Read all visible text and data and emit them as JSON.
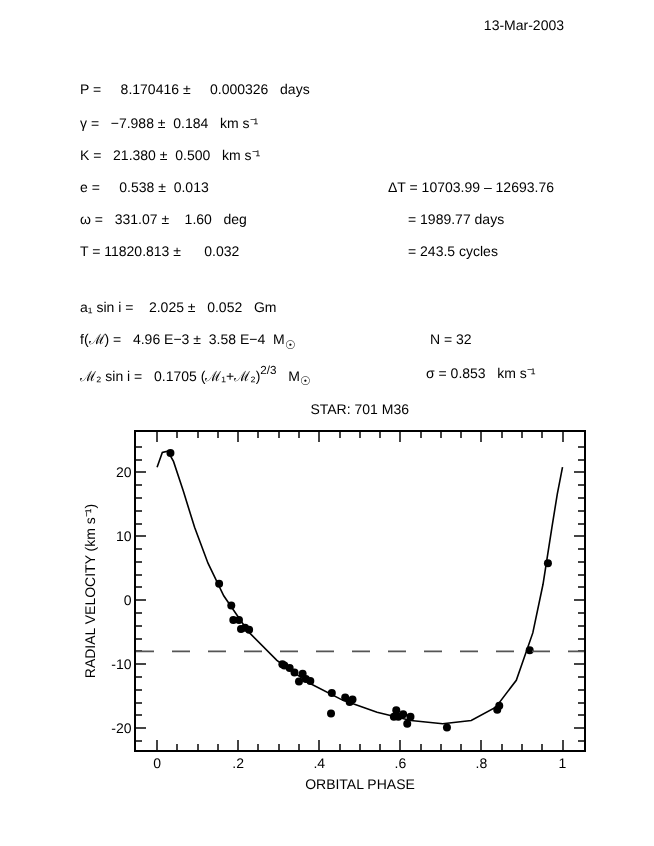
{
  "chart_data": {
    "type": "scatter",
    "title": "STAR: 701 M36",
    "xlabel": "ORBITAL PHASE",
    "ylabel": "RADIAL VELOCITY (km s⁻¹)",
    "annotations": [
      "13-Mar-2003",
      "P =     8.170416 ±     0.000326   days",
      "γ =   −7.988 ±  0.184   km s⁻¹",
      "K =   21.380 ±  0.500   km s⁻¹",
      "e =     0.538 ±  0.013",
      "ω =   331.07 ±    1.60   deg",
      "T = 11820.813 ±      0.032",
      "a₁ sin i =    2.025 ±   0.052   Gm",
      "f(ℳ) =   4.96 E−3 ±  3.58 E−4  M$_{☉}$",
      "ℳ₂ sin i =   0.1705 (ℳ₁+ℳ₂)$^{2/3}$   M$_{☉}$",
      "ΔT = 10703.99 – 12693.76",
      "= 1989.77 days",
      "= 243.5 cycles",
      "N = 32",
      "σ = 0.853   km s⁻¹"
    ],
    "xlim": [
      -0.052,
      1.053
    ],
    "ylim": [
      -23.4,
      26.3
    ],
    "xticks": [
      0,
      {
        "value": 0.2,
        "label": ".2"
      },
      {
        "value": 0.4,
        "label": ".4"
      },
      {
        "value": 0.6,
        "label": ".6"
      },
      {
        "value": 0.8,
        "label": ".8"
      },
      1
    ],
    "yticks": [
      -20,
      -10,
      0,
      10,
      20
    ],
    "grid": false,
    "ref_lines": [
      {
        "axis": "y",
        "value": -7.988,
        "line_style": "dashed",
        "color": "#555555"
      }
    ],
    "series": [
      {
        "marker": "circle",
        "color": "#000000",
        "x": [
          0.033,
          0.153,
          0.183,
          0.188,
          0.202,
          0.207,
          0.217,
          0.227,
          0.309,
          0.314,
          0.327,
          0.339,
          0.35,
          0.359,
          0.367,
          0.378,
          0.431,
          0.429,
          0.464,
          0.475,
          0.482,
          0.584,
          0.59,
          0.595,
          0.607,
          0.617,
          0.625,
          0.715,
          0.839,
          0.844,
          0.919,
          0.964
        ],
        "values": [
          23.0,
          2.6,
          -0.8,
          -3.1,
          -3.1,
          -4.5,
          -4.3,
          -4.6,
          -10.0,
          -10.2,
          -10.6,
          -11.3,
          -12.7,
          -11.5,
          -12.3,
          -12.6,
          -14.5,
          -17.7,
          -15.2,
          -15.9,
          -15.5,
          -18.2,
          -17.2,
          -18.2,
          -17.8,
          -19.3,
          -18.2,
          -19.9,
          -17.1,
          -16.5,
          -7.8,
          5.8
        ]
      },
      {
        "type": "line",
        "marker": "none",
        "color": "#000000",
        "line_style": "solid",
        "x": [
          0,
          0.0129,
          0.0263,
          0.0405,
          0.0645,
          0.0925,
          0.1256,
          0.1644,
          0.2251,
          0.2955,
          0.3739,
          0.4574,
          0.5426,
          0.6261,
          0.7045,
          0.7749,
          0.8356,
          0.886,
          0.9267,
          0.9519,
          0.9737,
          0.9871,
          1
        ],
        "values": [
          20.8,
          23.1,
          23.3,
          21.7,
          17.1,
          11.4,
          5.8,
          0.7,
          -4.9,
          -9.4,
          -12.9,
          -15.6,
          -17.5,
          -18.8,
          -19.3,
          -18.8,
          -16.7,
          -12.5,
          -5.1,
          2.5,
          11.3,
          16.6,
          20.8
        ]
      }
    ]
  }
}
